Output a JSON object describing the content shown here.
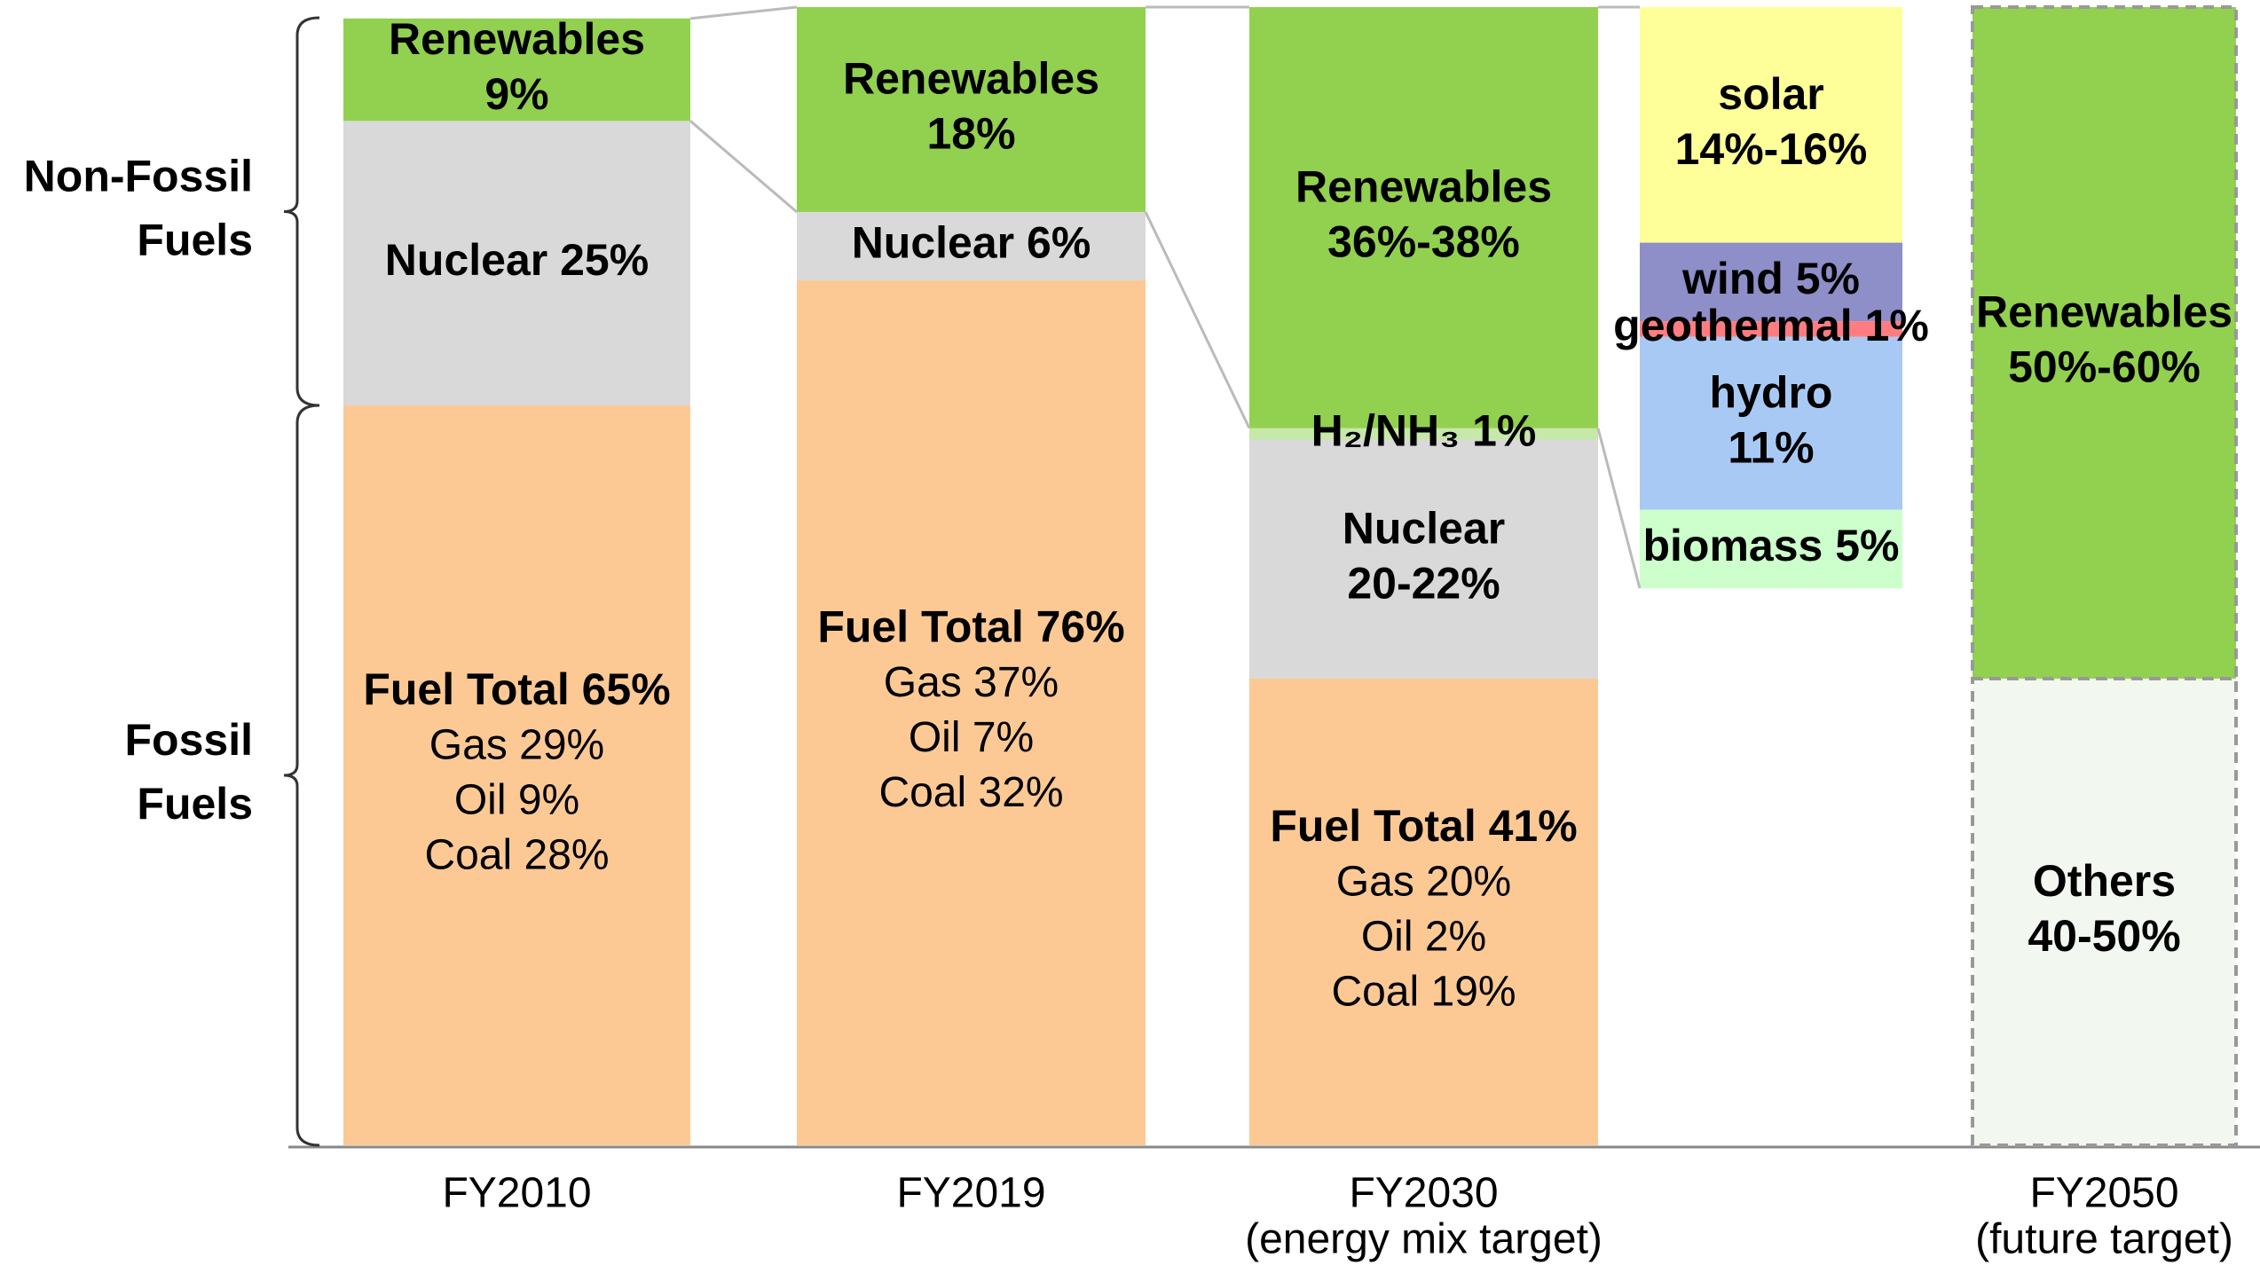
{
  "chart_data": {
    "type": "stacked_bar",
    "ylim": [
      0,
      100
    ],
    "groups": [
      {
        "label": [
          "Non-Fossil",
          "Fuels"
        ]
      },
      {
        "label": [
          "Fossil",
          "Fuels"
        ]
      }
    ],
    "columns": [
      {
        "label": [
          "FY2010"
        ],
        "segments": [
          {
            "label": [
              "Fuel Total 65%",
              "Gas 29%",
              "Oil 9%",
              "Coal 28%"
            ],
            "value": 65,
            "color": "#fcc995"
          },
          {
            "label": [
              "Nuclear 25%"
            ],
            "value": 25,
            "color": "#d9d9d9"
          },
          {
            "label": [
              "Renewables",
              "9%"
            ],
            "value": 9,
            "color": "#92d050"
          }
        ]
      },
      {
        "label": [
          "FY2019"
        ],
        "segments": [
          {
            "label": [
              "Fuel Total 76%",
              "Gas 37%",
              "Oil 7%",
              "Coal 32%"
            ],
            "value": 76,
            "color": "#fcc995"
          },
          {
            "label": [
              "Nuclear 6%"
            ],
            "value": 6,
            "color": "#d9d9d9"
          },
          {
            "label": [
              "Renewables",
              "18%"
            ],
            "value": 18,
            "color": "#92d050"
          }
        ]
      },
      {
        "label": [
          "FY2030",
          "(energy mix target)"
        ],
        "segments": [
          {
            "label": [
              "Fuel Total 41%",
              "Gas 20%",
              "Oil 2%",
              "Coal 19%"
            ],
            "value": 41,
            "color": "#fcc995"
          },
          {
            "label": [
              "Nuclear",
              "20-22%"
            ],
            "value": 21,
            "color": "#d9d9d9"
          },
          {
            "label": [
              "H₂/NH₃ 1%"
            ],
            "value": 1,
            "color": "#c6e8a8"
          },
          {
            "label": [
              "Renewables",
              "36%-38%"
            ],
            "value": 37,
            "color": "#92d050"
          }
        ]
      },
      {
        "label": [
          "FY2050",
          "(future target)"
        ],
        "dashed": true,
        "segments": [
          {
            "label": [
              "Others",
              "40-50%"
            ],
            "value": 41,
            "color": "#f2f8ef"
          },
          {
            "label": [
              "Renewables",
              "50%-60%"
            ],
            "value": 59,
            "color": "#92d050"
          }
        ]
      }
    ],
    "renewables_breakdown": {
      "segments": [
        {
          "label": [
            "solar",
            "14%-16%"
          ],
          "value": 15,
          "color": "#ffff99"
        },
        {
          "label": [
            "wind 5%"
          ],
          "value": 5,
          "color": "#8e8ec8"
        },
        {
          "label": [
            "geothermal 1%"
          ],
          "value": 1,
          "color": "#ff7c80"
        },
        {
          "label": [
            "hydro",
            "11%"
          ],
          "value": 11,
          "color": "#a9c9f5"
        },
        {
          "label": [
            "biomass 5%"
          ],
          "value": 5,
          "color": "#ccffcc"
        }
      ]
    }
  }
}
